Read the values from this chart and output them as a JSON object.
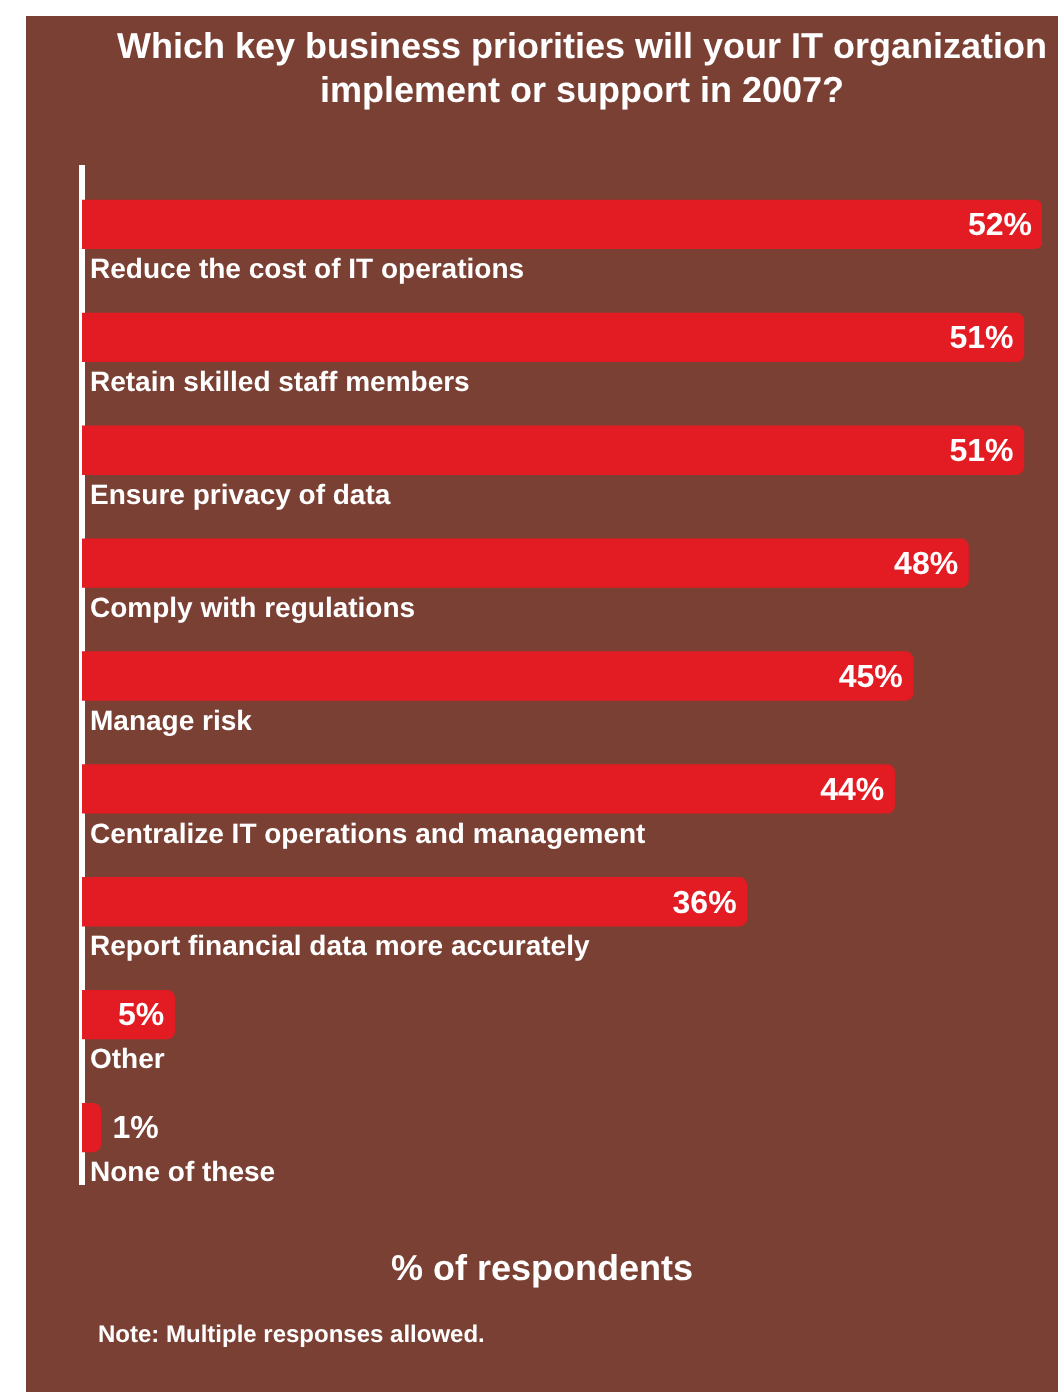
{
  "chart_data": {
    "type": "bar",
    "orientation": "horizontal",
    "title": "Which key business priorities will your IT organization implement or support in 2007?",
    "xlabel": "% of respondents",
    "categories": [
      "Reduce the cost of IT operations",
      "Retain skilled staff members",
      "Ensure privacy of data",
      "Comply with regulations",
      "Manage risk",
      "Centralize IT operations and management",
      "Report financial data more accurately",
      "Other",
      "None of these"
    ],
    "values": [
      52,
      51,
      51,
      48,
      45,
      44,
      36,
      5,
      1
    ],
    "value_labels": [
      "52%",
      "51%",
      "51%",
      "48%",
      "45%",
      "44%",
      "36%",
      "5%",
      "1%"
    ],
    "color": "#e31b23",
    "annotations": [
      "Note: Multiple responses allowed."
    ]
  }
}
